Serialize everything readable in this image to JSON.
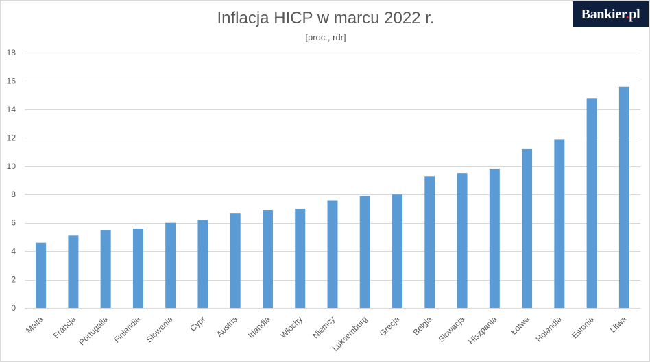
{
  "chart_data": {
    "type": "bar",
    "title": "Inflacja HICP w marcu 2022 r.",
    "subtitle": "[proc., rdr]",
    "xlabel": "",
    "ylabel": "",
    "ylim": [
      0,
      18
    ],
    "yticks": [
      0,
      2,
      4,
      6,
      8,
      10,
      12,
      14,
      16,
      18
    ],
    "grid": true,
    "categories": [
      "Malta",
      "Francja",
      "Portugalia",
      "Finlandia",
      "Słowenia",
      "Cypr",
      "Austria",
      "Irlandia",
      "Włochy",
      "Niemcy",
      "Luksemburg",
      "Grecja",
      "Belgia",
      "Słowacja",
      "Hiszpania",
      "Łotwa",
      "Holandia",
      "Estonia",
      "Litwa"
    ],
    "values": [
      4.6,
      5.1,
      5.5,
      5.6,
      6.0,
      6.2,
      6.7,
      6.9,
      7.0,
      7.6,
      7.9,
      8.0,
      9.3,
      9.5,
      9.8,
      11.2,
      11.9,
      14.8,
      15.6
    ],
    "bar_color": "#5b9bd5",
    "grid_color": "#d9d9d9"
  },
  "brand": {
    "name": "Bankier",
    "dot": ".",
    "tld": "pl"
  }
}
